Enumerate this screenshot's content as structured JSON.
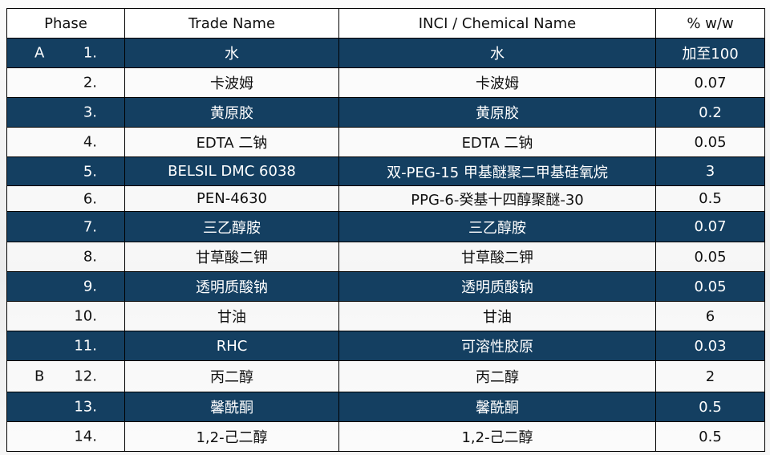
{
  "headers": [
    "Phase",
    "Trade Name",
    "INCI / Chemical Name",
    "% w/w"
  ],
  "rows": [
    {
      "phase": "A",
      "num": "1.",
      "trade": "水",
      "inci": "水",
      "pct": "加至100"
    },
    {
      "phase": "",
      "num": "2.",
      "trade": "卡波姆",
      "inci": "卡波姆",
      "pct": "0.07"
    },
    {
      "phase": "",
      "num": "3.",
      "trade": "黄原胶",
      "inci": "黄原胶",
      "pct": "0.2"
    },
    {
      "phase": "",
      "num": "4.",
      "trade": "EDTA 二钠",
      "inci": "EDTA 二钠",
      "pct": "0.05"
    },
    {
      "phase": "",
      "num": "5.",
      "trade": "BELSIL DMC 6038",
      "inci": "双-PEG-15 甲基醚聚二甲基硅氧烷",
      "pct": "3"
    },
    {
      "phase": "",
      "num": "6.",
      "trade": "PEN-4630",
      "inci": "PPG-6-癸基十四醇聚醚-30",
      "pct": "0.5"
    },
    {
      "phase": "",
      "num": "7.",
      "trade": "三乙醇胺",
      "inci": "三乙醇胺",
      "pct": "0.07"
    },
    {
      "phase": "",
      "num": "8.",
      "trade": "甘草酸二钾",
      "inci": "甘草酸二钾",
      "pct": "0.05"
    },
    {
      "phase": "",
      "num": "9.",
      "trade": "透明质酸钠",
      "inci": "透明质酸钠",
      "pct": "0.05"
    },
    {
      "phase": "",
      "num": "10.",
      "trade": "甘油",
      "inci": "甘油",
      "pct": "6"
    },
    {
      "phase": "",
      "num": "11.",
      "trade": "RHC",
      "inci": "可溶性胶原",
      "pct": "0.03"
    },
    {
      "phase": "B",
      "num": "12.",
      "trade": "丙二醇",
      "inci": "丙二醇",
      "pct": "2"
    },
    {
      "phase": "",
      "num": "13.",
      "trade": "馨酰酮",
      "inci": "馨酰酮",
      "pct": "0.5"
    },
    {
      "phase": "",
      "num": "14.",
      "trade": "1,2-己二醇",
      "inci": "1,2-己二醇",
      "pct": "0.5"
    }
  ],
  "colors": {
    "dark_row": "#143f61",
    "light_row": "#ffffff"
  }
}
